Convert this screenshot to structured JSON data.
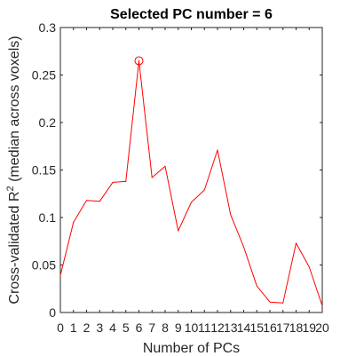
{
  "chart_data": {
    "type": "line",
    "title": "Selected PC number = 6",
    "xlabel": "Number of PCs",
    "ylabel_main": "Cross-validated R",
    "ylabel_sup": "2",
    "ylabel_tail": " (median across voxels)",
    "xlim": [
      0,
      20
    ],
    "ylim": [
      0,
      0.3
    ],
    "x_ticks": [
      "0",
      "1",
      "2",
      "3",
      "4",
      "5",
      "6",
      "7",
      "8",
      "9",
      "10",
      "11",
      "12",
      "13",
      "14",
      "15",
      "16",
      "17",
      "18",
      "19",
      "20"
    ],
    "y_ticks": [
      "0",
      "0.05",
      "0.1",
      "0.15",
      "0.2",
      "0.25",
      "0.3"
    ],
    "grid": false,
    "series": [
      {
        "color": "#ff0000",
        "x": [
          0,
          1,
          2,
          3,
          4,
          5,
          6,
          7,
          8,
          9,
          10,
          11,
          12,
          13,
          14,
          15,
          16,
          17,
          18,
          19,
          20
        ],
        "y": [
          0.039,
          0.095,
          0.118,
          0.117,
          0.137,
          0.138,
          0.265,
          0.142,
          0.154,
          0.086,
          0.116,
          0.129,
          0.171,
          0.103,
          0.069,
          0.028,
          0.011,
          0.01,
          0.073,
          0.048,
          0.007
        ]
      }
    ],
    "highlight": {
      "x": 6,
      "y": 0.265,
      "marker": "circle",
      "color": "#ff0000"
    }
  }
}
